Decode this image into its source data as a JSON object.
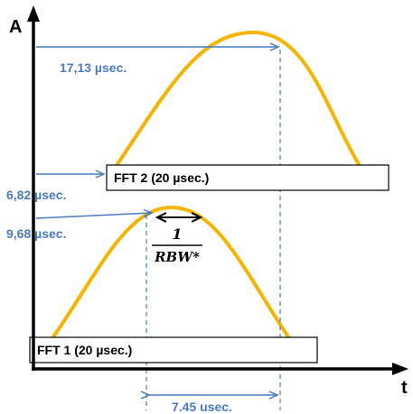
{
  "axes": {
    "y_label": "A",
    "x_label": "t"
  },
  "timings": {
    "label_top": "17,13 µsec.",
    "label_fft2": "6,82 µsec.",
    "label_peak1": "9,68 µsec.",
    "label_delta": "7.45 usec."
  },
  "fft_windows": [
    {
      "label": "FFT 2 (20 µsec.)"
    },
    {
      "label": "FFT 1 (20 µsec.)"
    }
  ],
  "rbw": {
    "numerator": "1",
    "denominator": "RBW*"
  },
  "colors": {
    "pulse": "#f5b400",
    "arrow": "#4a7cc0",
    "axis": "#000000"
  }
}
